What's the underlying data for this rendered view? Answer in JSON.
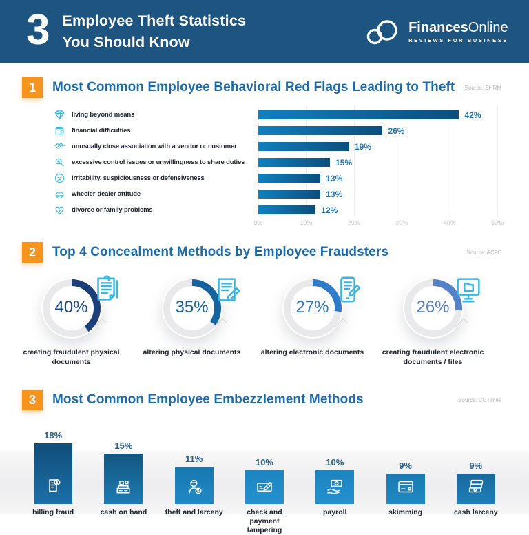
{
  "header": {
    "number": "3",
    "title_line1": "Employee Theft Statistics",
    "title_line2": "You Should Know",
    "brand_bold": "Finances",
    "brand_light": "Online",
    "brand_tagline": "REVIEWS FOR BUSINESS",
    "logo_icon": "cloud-logo-icon"
  },
  "colors": {
    "header_bg": "#1E5480",
    "section_number_bg": "#F7941E",
    "section_title": "#1A6BAD",
    "bar_gradient_left": "#1180BE",
    "bar_gradient_right": "#0C4E7D",
    "bar_value_label": "#1B74B4",
    "axis_text": "#C9C9C9",
    "category_text": "#1D2430",
    "icon_cyan": "#35B7E5",
    "donut_ring_bg": "#E9E9EC",
    "vertical_value_label": "#295E89"
  },
  "sections": [
    {
      "number": "1",
      "title": "Most Common Employee Behavioral Red Flags Leading to Theft",
      "source": "Source: SHRM"
    },
    {
      "number": "2",
      "title": "Top 4 Concealment Methods by Employee Fraudsters",
      "source": "Source: ACFE"
    },
    {
      "number": "3",
      "title": "Most Common Employee Embezzlement Methods",
      "source": "Source: CUTimes"
    }
  ],
  "chart_data": [
    {
      "type": "bar",
      "orientation": "horizontal",
      "title": "Most Common Employee Behavioral Red Flags Leading to Theft",
      "categories": [
        "living beyond means",
        "financial difficulties",
        "unusually close association with a vendor or customer",
        "excessive control issues or unwillingness to share duties",
        "irritability, suspiciousness or defensiveness",
        "wheeler-dealer attitude",
        "divorce or family problems"
      ],
      "values": [
        42,
        26,
        19,
        15,
        13,
        13,
        12
      ],
      "icons": [
        "diamond-icon",
        "wallet-icon",
        "handshake-icon",
        "magnifier-icon",
        "angry-face-icon",
        "car-deal-icon",
        "broken-heart-icon"
      ],
      "x_ticks": [
        "0%",
        "10%",
        "20%",
        "30%",
        "40%",
        "50%"
      ],
      "xlim": [
        0,
        50
      ],
      "grid": true,
      "value_suffix": "%"
    },
    {
      "type": "pie",
      "subtype": "donut",
      "title": "Top 4 Concealment Methods by Employee Fraudsters",
      "items": [
        {
          "label": "creating fraudulent physical documents",
          "value": 40,
          "color": "#1D3F77",
          "text_color": "#1C4886",
          "icon": "paper-documents-icon"
        },
        {
          "label": "altering physical documents",
          "value": 35,
          "color": "#15639F",
          "text_color": "#15619D",
          "icon": "document-pencil-icon"
        },
        {
          "label": "altering electronic documents",
          "value": 27,
          "color": "#2E7BC9",
          "text_color": "#2D77C3",
          "icon": "tablet-pencil-icon"
        },
        {
          "label": "creating fraudulent electronic documents / files",
          "value": 26,
          "color": "#5581C9",
          "text_color": "#5580C8",
          "icon": "computer-folder-icon"
        }
      ],
      "value_suffix": "%"
    },
    {
      "type": "bar",
      "orientation": "vertical",
      "title": "Most Common Employee Embezzlement Methods",
      "categories": [
        "billing fraud",
        "cash on hand",
        "theft and larceny",
        "check and payment tampering",
        "payroll",
        "skimming",
        "cash larceny"
      ],
      "values": [
        18,
        15,
        11,
        10,
        10,
        9,
        9
      ],
      "icons": [
        "receipt-coin-icon",
        "cash-register-icon",
        "thief-icon",
        "check-tampering-icon",
        "payroll-hand-icon",
        "wallet-card-icon",
        "cash-stack-icon"
      ],
      "bar_colors": [
        [
          "#124E79",
          "#1B6FA8"
        ],
        [
          "#135781",
          "#1E7BB2"
        ],
        [
          "#1877B1",
          "#2189C5"
        ],
        [
          "#1C83BF",
          "#2492CF"
        ],
        [
          "#1C83BF",
          "#2492CF"
        ],
        [
          "#1B79B3",
          "#2089C2"
        ],
        [
          "#18699F",
          "#1F7FB8"
        ]
      ],
      "value_suffix": "%"
    }
  ]
}
